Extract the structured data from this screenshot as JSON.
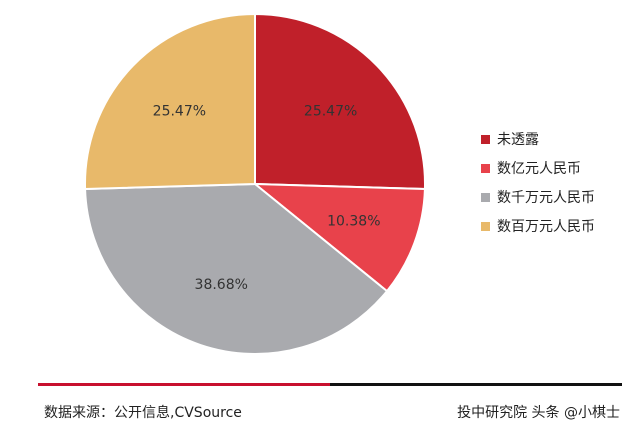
{
  "chart_data": {
    "type": "pie",
    "categories": [
      "未透露",
      "数亿元人民币",
      "数千万元人民币",
      "数百万元人民币"
    ],
    "values": [
      25.47,
      10.38,
      38.68,
      25.47
    ],
    "labels": [
      "25.47%",
      "10.38%",
      "38.68%",
      "25.47%"
    ],
    "colors": [
      "#c0202a",
      "#e8424b",
      "#a9aaae",
      "#e8b96a"
    ],
    "legend_position": "right"
  },
  "footer": {
    "source": "数据来源：公开信息,CVSource",
    "credit": "投中研究院 头条 @小棋士"
  }
}
